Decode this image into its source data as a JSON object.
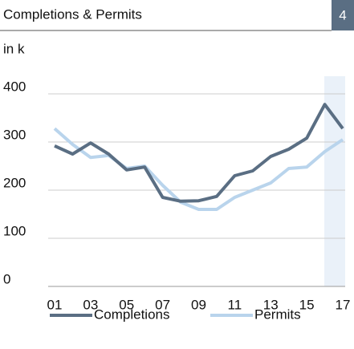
{
  "chart_data": {
    "type": "line",
    "title": "Completions & Permits",
    "badge": "4",
    "unit": "in k",
    "categories": [
      "01",
      null,
      "03",
      null,
      "05",
      null,
      "07",
      null,
      "09",
      null,
      "11",
      null,
      "13",
      null,
      "15",
      null,
      "17"
    ],
    "series": [
      {
        "name": "Completions",
        "color": "#5a6e83",
        "values": [
          292,
          275,
          298,
          275,
          242,
          248,
          185,
          177,
          178,
          187,
          230,
          240,
          270,
          285,
          308,
          378,
          328
        ]
      },
      {
        "name": "Permits",
        "color": "#b9d4ec",
        "values": [
          328,
          295,
          268,
          272,
          245,
          250,
          210,
          175,
          160,
          160,
          185,
          200,
          215,
          245,
          248,
          280,
          305
        ]
      }
    ],
    "ylim": [
      0,
      400
    ],
    "yticks": [
      0,
      100,
      200,
      300,
      400
    ],
    "grid": true
  }
}
